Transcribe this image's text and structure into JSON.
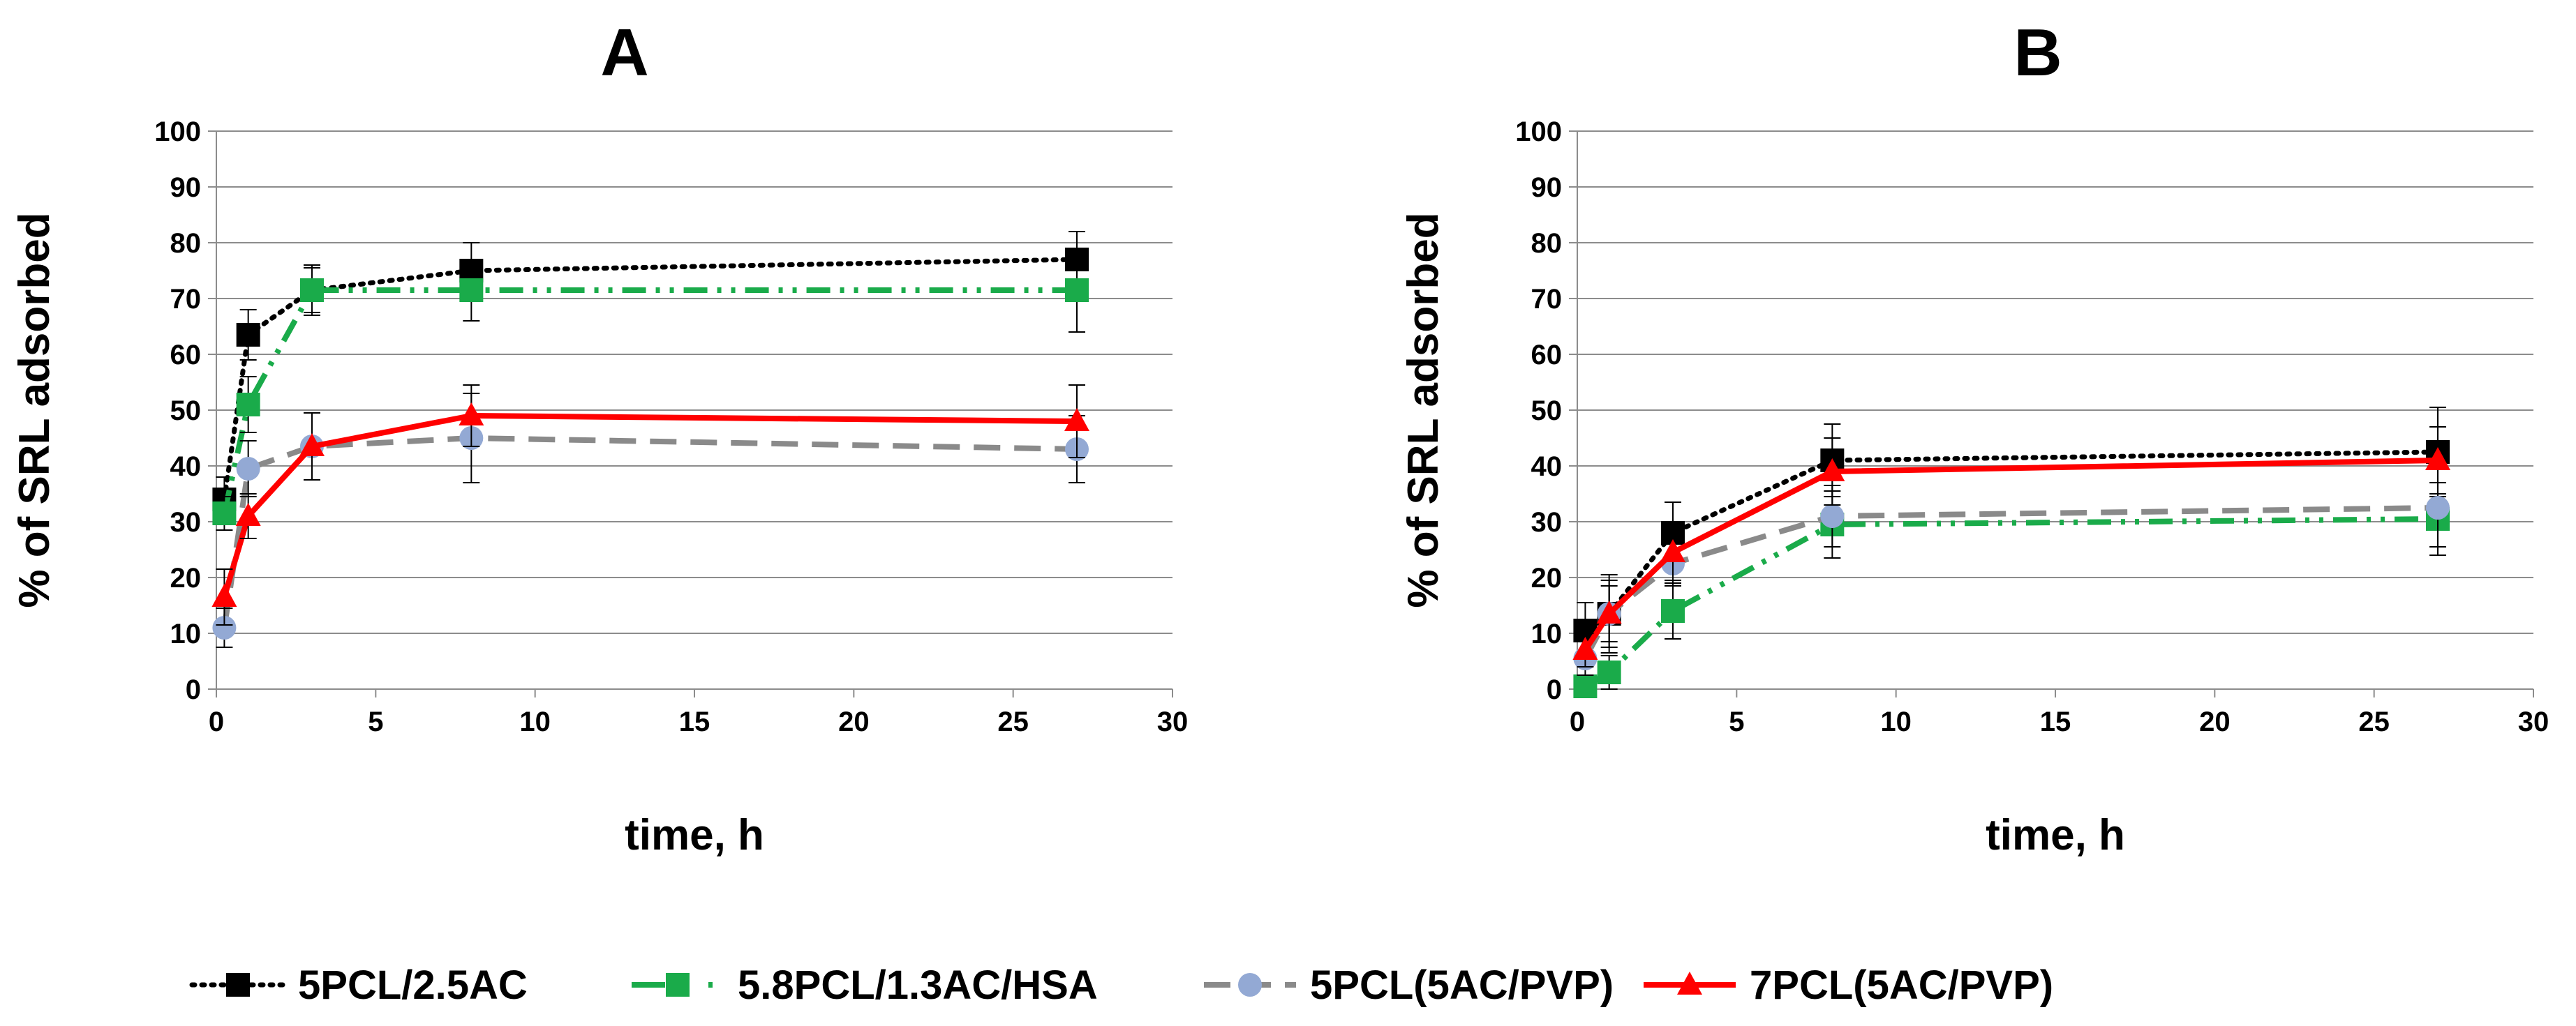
{
  "chart_data": [
    {
      "type": "line",
      "title": "A",
      "xlabel": "time, h",
      "ylabel": "% of SRL adsorbed",
      "xlim": [
        0,
        30
      ],
      "ylim": [
        0,
        100
      ],
      "xticks": [
        0,
        5,
        10,
        15,
        20,
        25,
        30
      ],
      "yticks": [
        0,
        10,
        20,
        30,
        40,
        50,
        60,
        70,
        80,
        90,
        100
      ],
      "grid": "horizontal",
      "series": [
        {
          "name": "5PCL/2.5AC",
          "color": "#000000",
          "marker": "square",
          "line": "dotted",
          "x": [
            0.25,
            1,
            3,
            8,
            27
          ],
          "y": [
            34,
            63.5,
            71.5,
            75,
            77
          ],
          "err": [
            4,
            4.5,
            4.5,
            5,
            5
          ]
        },
        {
          "name": "5.8PCL/1.3AC/HSA",
          "color": "#1aab4a",
          "marker": "square",
          "line": "dash-dot-dot",
          "x": [
            0.25,
            1,
            3,
            8,
            27
          ],
          "y": [
            31.5,
            51,
            71.5,
            71.5,
            71.5
          ],
          "err": [
            3,
            5,
            4,
            5.5,
            7.5
          ]
        },
        {
          "name": "5PCL(5AC/PVP)",
          "color": "#8a8a8a",
          "marker": "circle",
          "markerColor": "#93a9d4",
          "line": "dashed",
          "x": [
            0.25,
            1,
            3,
            8,
            27
          ],
          "y": [
            11,
            39.5,
            43.5,
            45,
            43
          ],
          "err": [
            3.5,
            5,
            6,
            8,
            6
          ]
        },
        {
          "name": "7PCL(5AC/PVP)",
          "color": "#ff0000",
          "marker": "triangle",
          "line": "solid",
          "x": [
            0.25,
            1,
            3,
            8,
            27
          ],
          "y": [
            16.5,
            31,
            43.5,
            49,
            48
          ],
          "err": [
            5,
            4,
            6,
            5.5,
            6.5
          ]
        }
      ]
    },
    {
      "type": "line",
      "title": "B",
      "xlabel": "time, h",
      "ylabel": "% of SRL adsorbed",
      "xlim": [
        0,
        30
      ],
      "ylim": [
        0,
        100
      ],
      "xticks": [
        0,
        5,
        10,
        15,
        20,
        25,
        30
      ],
      "yticks": [
        0,
        10,
        20,
        30,
        40,
        50,
        60,
        70,
        80,
        90,
        100
      ],
      "grid": "horizontal",
      "series": [
        {
          "name": "5PCL/2.5AC",
          "color": "#000000",
          "marker": "square",
          "line": "dotted",
          "x": [
            0.25,
            1,
            3,
            8,
            27
          ],
          "y": [
            10.5,
            13.5,
            28,
            41,
            42.5
          ],
          "err": [
            5,
            7,
            5.5,
            6.5,
            8
          ]
        },
        {
          "name": "5.8PCL/1.3AC/HSA",
          "color": "#1aab4a",
          "marker": "square",
          "line": "dash-dot-dot",
          "x": [
            0.25,
            1,
            3,
            8,
            27
          ],
          "y": [
            0.5,
            3,
            14,
            29.5,
            30.5
          ],
          "err": [
            2,
            3,
            5,
            6,
            6.5
          ]
        },
        {
          "name": "5PCL(5AC/PVP)",
          "color": "#8a8a8a",
          "marker": "circle",
          "markerColor": "#93a9d4",
          "line": "dashed",
          "x": [
            0.25,
            1,
            3,
            8,
            27
          ],
          "y": [
            5.5,
            13.5,
            22.5,
            31,
            32.5
          ],
          "err": [
            3,
            6,
            4,
            5.5,
            7
          ]
        },
        {
          "name": "7PCL(5AC/PVP)",
          "color": "#ff0000",
          "marker": "triangle",
          "line": "solid",
          "x": [
            0.25,
            1,
            3,
            8,
            27
          ],
          "y": [
            7,
            13.5,
            24.5,
            39,
            41
          ],
          "err": [
            3,
            5,
            5,
            6,
            6
          ]
        }
      ]
    }
  ],
  "legend": {
    "placement": "bottom",
    "items": [
      "5PCL/2.5AC",
      "5.8PCL/1.3AC/HSA",
      "5PCL(5AC/PVP)",
      "7PCL(5AC/PVP)"
    ]
  }
}
